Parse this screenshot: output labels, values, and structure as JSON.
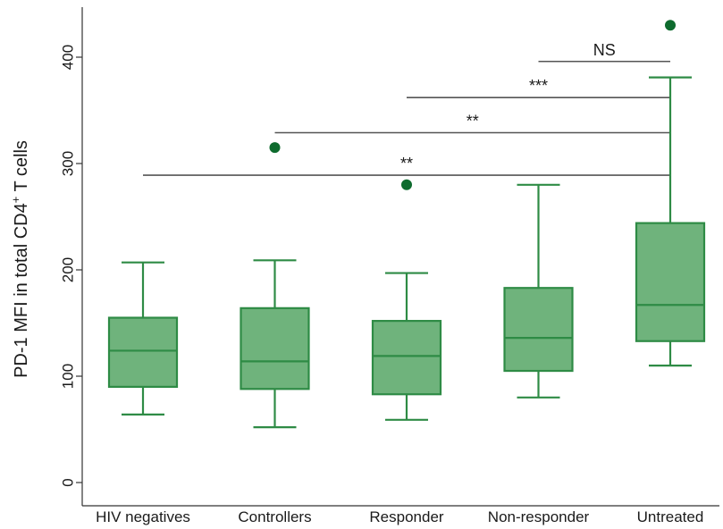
{
  "chart_data": {
    "type": "box",
    "title": "",
    "xlabel": "",
    "ylabel": {
      "main": "PD-1 MFI in total CD4",
      "superscript": "+",
      "suffix": " T cells"
    },
    "ylim": [
      -20,
      450
    ],
    "yticks": [
      0,
      100,
      200,
      300,
      400
    ],
    "categories": [
      "HIV negatives",
      "Controllers",
      "Responder",
      "Non-responder",
      "Untreated"
    ],
    "boxes": [
      {
        "category": "HIV negatives",
        "whisker_low": 64,
        "q1": 90,
        "median": 124,
        "q3": 155,
        "whisker_high": 207,
        "outliers": []
      },
      {
        "category": "Controllers",
        "whisker_low": 52,
        "q1": 88,
        "median": 114,
        "q3": 164,
        "whisker_high": 209,
        "outliers": [
          315
        ]
      },
      {
        "category": "Responder",
        "whisker_low": 59,
        "q1": 83,
        "median": 119,
        "q3": 152,
        "whisker_high": 197,
        "outliers": [
          280
        ]
      },
      {
        "category": "Non-responder",
        "whisker_low": 80,
        "q1": 105,
        "median": 136,
        "q3": 183,
        "whisker_high": 280,
        "outliers": []
      },
      {
        "category": "Untreated",
        "whisker_low": 110,
        "q1": 133,
        "median": 167,
        "q3": 244,
        "whisker_high": 381,
        "outliers": [
          430
        ]
      }
    ],
    "significance": [
      {
        "from": "Non-responder",
        "to": "Untreated",
        "y": 396,
        "label": "NS"
      },
      {
        "from": "Responder",
        "to": "Untreated",
        "y": 362,
        "label": "***"
      },
      {
        "from": "Controllers",
        "to": "Untreated",
        "y": 329,
        "label": "**"
      },
      {
        "from": "HIV negatives",
        "to": "Untreated",
        "y": 289,
        "label": "**"
      }
    ],
    "colors": {
      "box_fill": "#6fb37c",
      "box_stroke": "#2e8b45",
      "outlier": "#0e6b2e",
      "bracket": "#555555",
      "axis": "#333333"
    }
  }
}
